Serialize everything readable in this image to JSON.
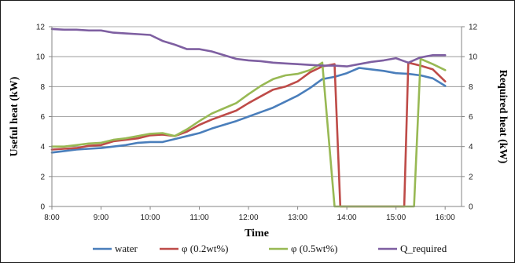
{
  "chart_data": {
    "type": "line",
    "xlabel": "Time",
    "ylabel_left": "Useful heat (kW)",
    "ylabel_right": "Required heat (kW)",
    "xlim": [
      "8:00",
      "16:20"
    ],
    "ylim_left": [
      0,
      12
    ],
    "ylim_right": [
      0,
      12
    ],
    "x_ticks": [
      "8:00",
      "9:00",
      "10:00",
      "11:00",
      "12:00",
      "13:00",
      "14:00",
      "15:00",
      "16:00"
    ],
    "y_ticks": [
      "0",
      "2",
      "4",
      "6",
      "8",
      "10",
      "12"
    ],
    "grid": "horizontal",
    "legend_position": "bottom",
    "series": [
      {
        "name": "water",
        "color": "#4a7ebb",
        "axis": "left",
        "x": [
          "8:00",
          "8:15",
          "8:30",
          "8:45",
          "9:00",
          "9:15",
          "9:30",
          "9:45",
          "10:00",
          "10:15",
          "10:30",
          "10:45",
          "11:00",
          "11:15",
          "11:30",
          "11:45",
          "12:00",
          "12:15",
          "12:30",
          "12:45",
          "13:00",
          "13:15",
          "13:30",
          "13:45",
          "14:00",
          "14:15",
          "14:30",
          "14:45",
          "15:00",
          "15:15",
          "15:30",
          "15:45",
          "16:00"
        ],
        "y": [
          3.6,
          3.7,
          3.8,
          3.85,
          3.9,
          4.0,
          4.1,
          4.25,
          4.3,
          4.3,
          4.5,
          4.7,
          4.9,
          5.2,
          5.45,
          5.7,
          6.0,
          6.3,
          6.6,
          7.0,
          7.4,
          7.9,
          8.5,
          8.65,
          8.9,
          9.25,
          9.15,
          9.05,
          8.9,
          8.85,
          8.75,
          8.55,
          8.05
        ]
      },
      {
        "name": "φ (0.2wt%)",
        "color": "#be4b48",
        "axis": "left",
        "x": [
          "8:00",
          "8:15",
          "8:30",
          "8:45",
          "9:00",
          "9:15",
          "9:30",
          "9:45",
          "10:00",
          "10:15",
          "10:30",
          "10:45",
          "11:00",
          "11:15",
          "11:30",
          "11:45",
          "12:00",
          "12:15",
          "12:30",
          "12:45",
          "13:00",
          "13:15",
          "13:30",
          "13:45",
          "13:52",
          "14:00",
          "14:15",
          "14:30",
          "14:45",
          "15:00",
          "15:10",
          "15:15",
          "15:30",
          "15:45",
          "16:00"
        ],
        "y": [
          3.8,
          3.85,
          3.9,
          4.05,
          4.1,
          4.35,
          4.45,
          4.55,
          4.75,
          4.8,
          4.7,
          5.0,
          5.45,
          5.8,
          6.1,
          6.4,
          6.9,
          7.35,
          7.8,
          8.0,
          8.35,
          8.95,
          9.35,
          9.5,
          0,
          0,
          0,
          0,
          0,
          0,
          0,
          9.6,
          9.4,
          9.15,
          8.35
        ]
      },
      {
        "name": "φ (0.5wt%)",
        "color": "#98b954",
        "axis": "left",
        "x": [
          "8:00",
          "8:15",
          "8:30",
          "8:45",
          "9:00",
          "9:15",
          "9:30",
          "9:45",
          "10:00",
          "10:15",
          "10:30",
          "10:45",
          "11:00",
          "11:15",
          "11:30",
          "11:45",
          "12:00",
          "12:15",
          "12:30",
          "12:45",
          "13:00",
          "13:15",
          "13:30",
          "13:45",
          "14:00",
          "14:15",
          "14:30",
          "14:45",
          "15:00",
          "15:15",
          "15:22",
          "15:30",
          "15:45",
          "16:00"
        ],
        "y": [
          4.0,
          4.0,
          4.1,
          4.2,
          4.25,
          4.45,
          4.55,
          4.7,
          4.85,
          4.9,
          4.7,
          5.15,
          5.7,
          6.2,
          6.55,
          6.9,
          7.5,
          8.05,
          8.5,
          8.75,
          8.85,
          9.1,
          9.6,
          0,
          0,
          0,
          0,
          0,
          0,
          0,
          0,
          9.85,
          9.5,
          9.1
        ]
      },
      {
        "name": "Q_required",
        "color": "#7e5fa1",
        "axis": "right",
        "x": [
          "8:00",
          "8:15",
          "8:30",
          "8:45",
          "9:00",
          "9:15",
          "9:30",
          "9:45",
          "10:00",
          "10:15",
          "10:30",
          "10:45",
          "11:00",
          "11:15",
          "11:30",
          "11:45",
          "12:00",
          "12:15",
          "12:30",
          "12:45",
          "13:00",
          "13:15",
          "13:30",
          "13:45",
          "14:00",
          "14:15",
          "14:30",
          "14:45",
          "15:00",
          "15:15",
          "15:30",
          "15:45",
          "16:00"
        ],
        "y": [
          11.85,
          11.8,
          11.8,
          11.75,
          11.75,
          11.6,
          11.55,
          11.5,
          11.45,
          11.05,
          10.8,
          10.5,
          10.5,
          10.35,
          10.1,
          9.85,
          9.75,
          9.7,
          9.6,
          9.55,
          9.5,
          9.45,
          9.4,
          9.4,
          9.35,
          9.5,
          9.65,
          9.75,
          9.9,
          9.6,
          9.95,
          10.1,
          10.1
        ]
      }
    ]
  }
}
